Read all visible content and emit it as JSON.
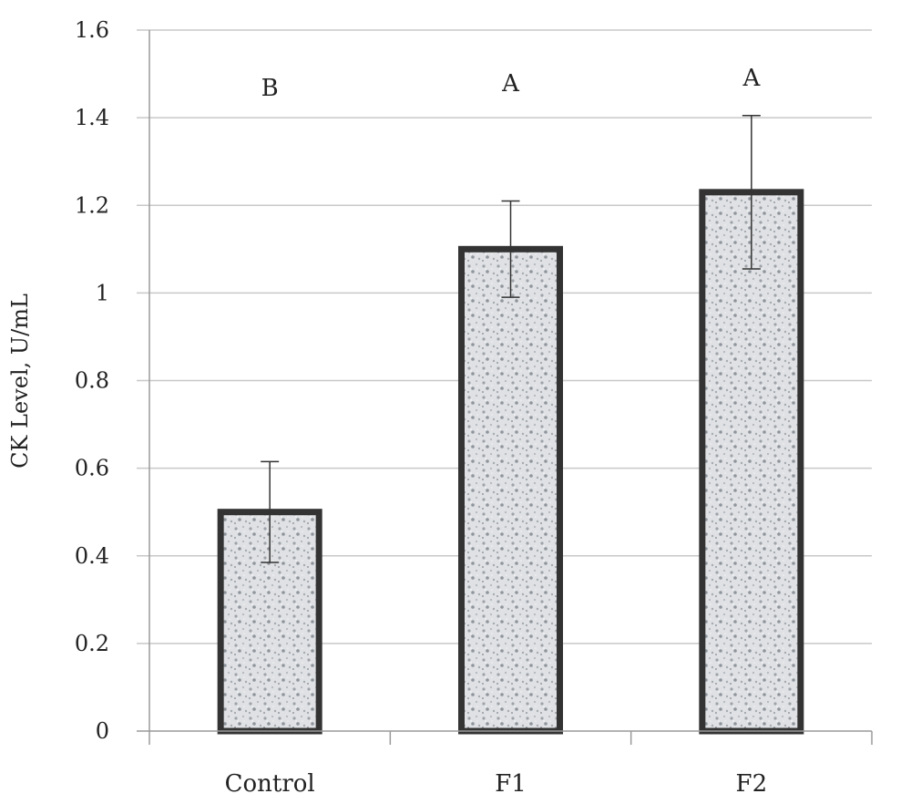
{
  "chart_data": {
    "type": "bar",
    "title": "",
    "xlabel": "",
    "ylabel": "CK Level, U/mL",
    "ylim": [
      0,
      1.6
    ],
    "yticks": [
      0,
      0.2,
      0.4,
      0.6,
      0.8,
      1,
      1.2,
      1.4,
      1.6
    ],
    "ytick_labels": [
      "0",
      "0.2",
      "0.4",
      "0.6",
      "0.8",
      "1",
      "1.2",
      "1.4",
      "1.6"
    ],
    "grid": true,
    "categories": [
      "Control",
      "F1",
      "F2"
    ],
    "values": [
      0.5,
      1.1,
      1.23
    ],
    "error_upper": [
      0.615,
      1.21,
      1.405
    ],
    "error_lower": [
      0.385,
      0.99,
      1.055
    ],
    "annotations": [
      "B",
      "A",
      "A"
    ],
    "colors": {
      "bar_fill": "#c9ccd0",
      "bar_stroke": "#333333",
      "grid": "#c8c8c8",
      "text": "#222222"
    }
  }
}
